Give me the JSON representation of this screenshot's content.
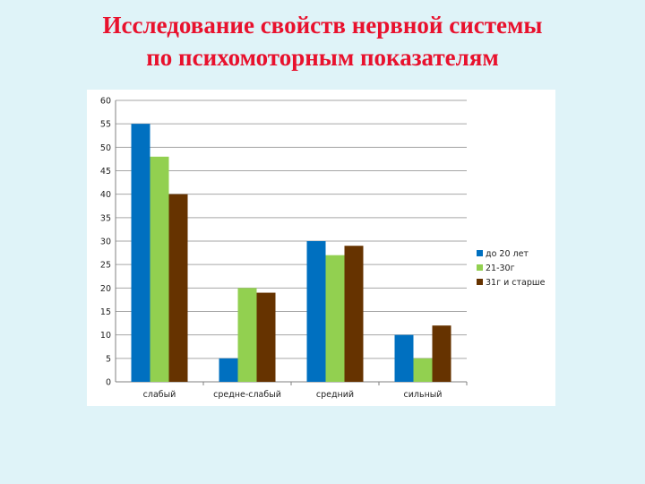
{
  "slide": {
    "title_line1": "Исследование свойств нервной системы",
    "title_line2": "по психомоторным показателям"
  },
  "chart_data": {
    "type": "bar",
    "title": "",
    "xlabel": "",
    "ylabel": "",
    "categories": [
      "слабый",
      "средне-слабый",
      "средний",
      "сильный"
    ],
    "series": [
      {
        "name": "до 20 лет",
        "color": "#0070c0",
        "values": [
          55,
          5,
          30,
          10
        ]
      },
      {
        "name": "21-30г",
        "color": "#92d050",
        "values": [
          48,
          20,
          27,
          5
        ]
      },
      {
        "name": "31г и старше",
        "color": "#663300",
        "values": [
          40,
          19,
          29,
          12
        ]
      }
    ],
    "ylim": [
      0,
      60
    ],
    "ytick_step": 5,
    "grid": true,
    "legend_position": "right"
  }
}
